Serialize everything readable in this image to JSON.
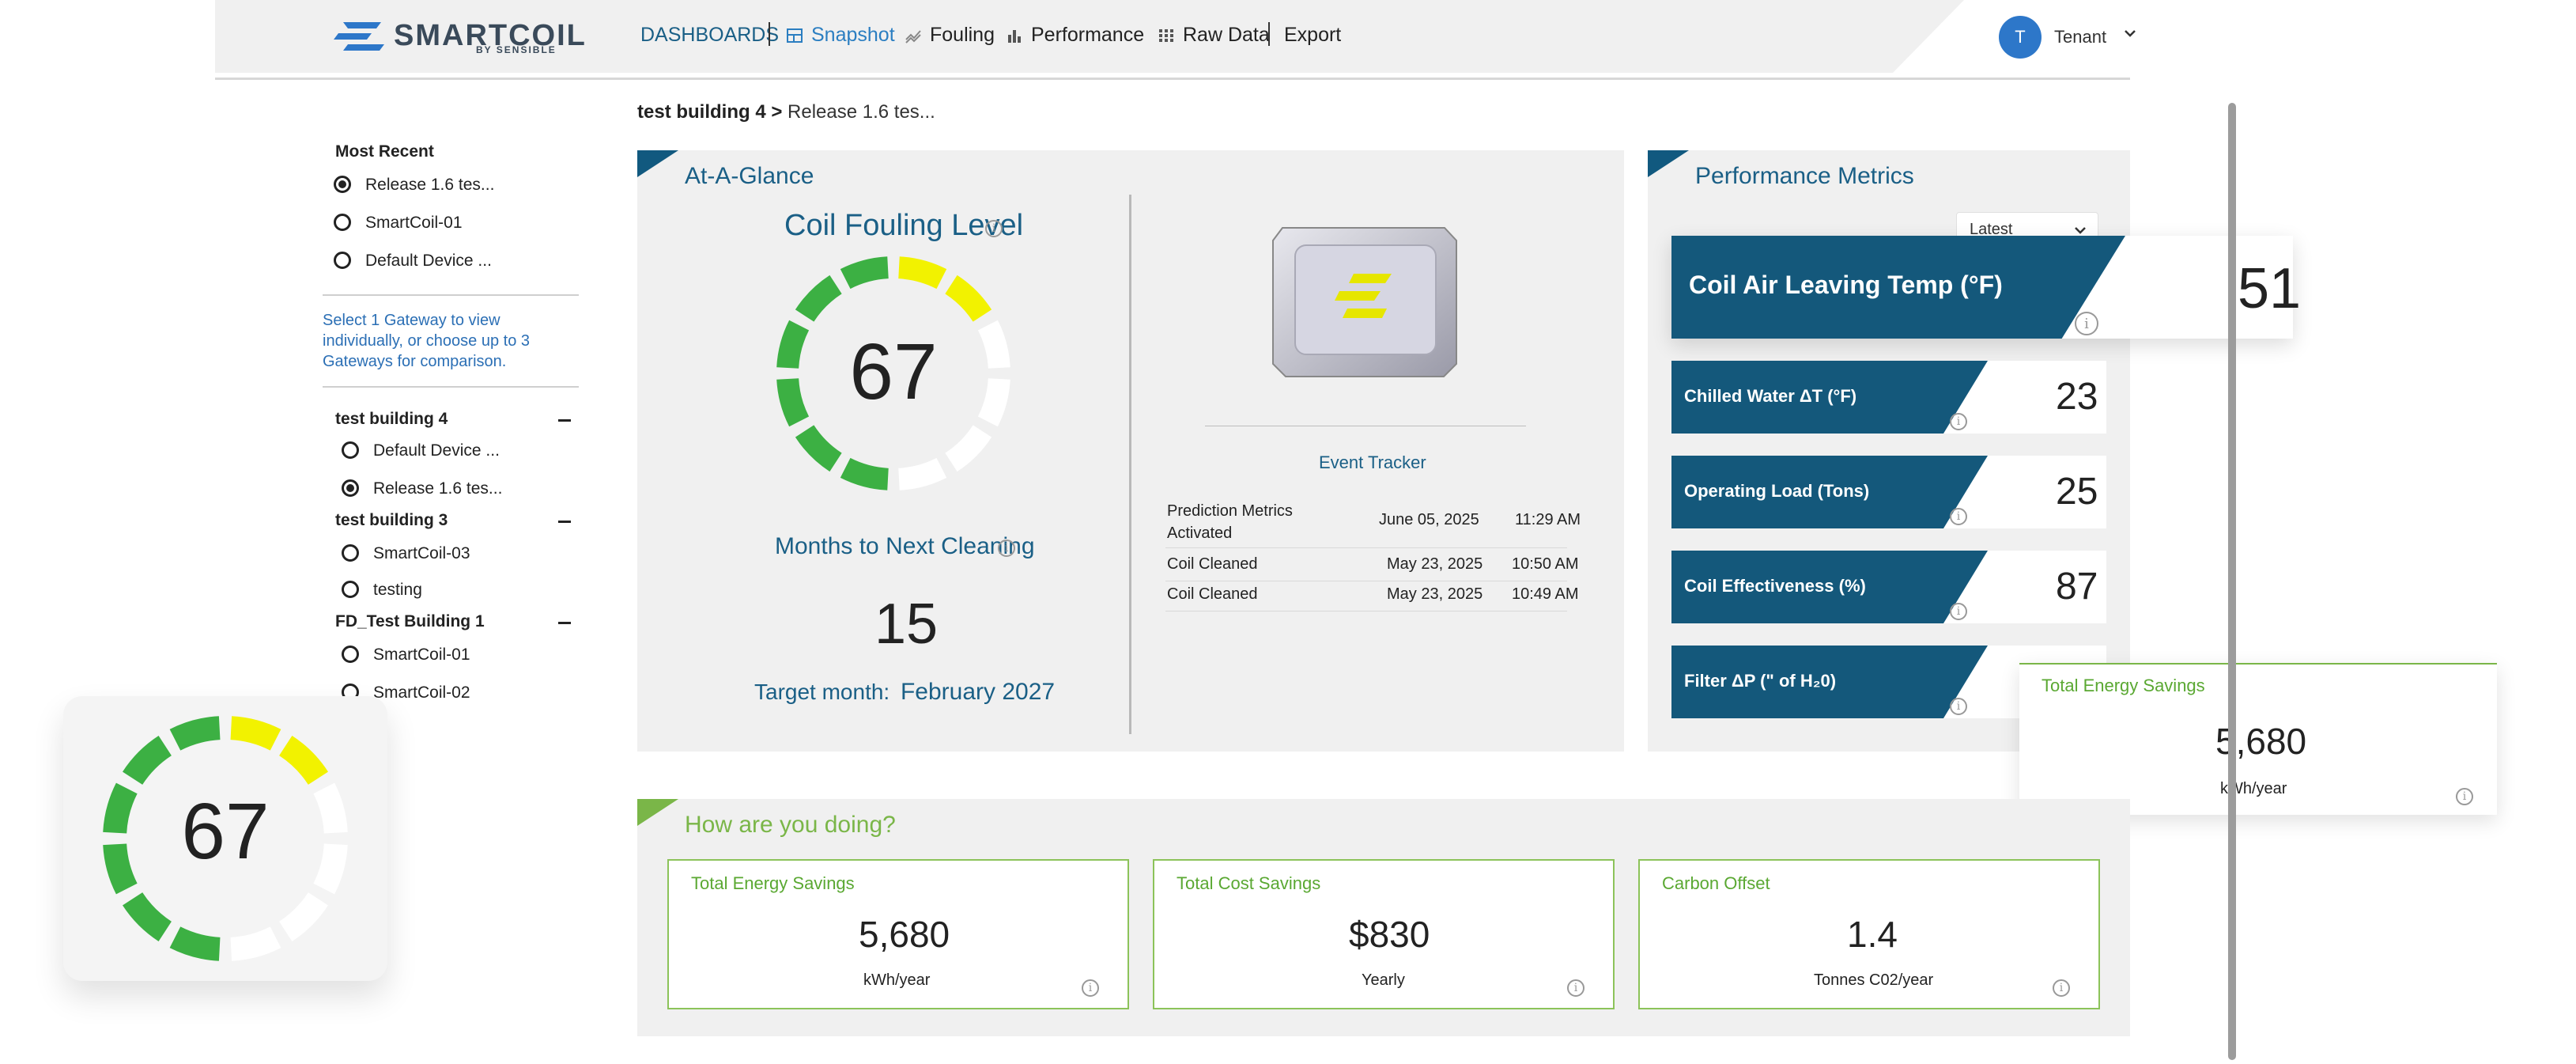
{
  "colors": {
    "brand_blue": "#14587b",
    "link_blue": "#2b7ec1",
    "green": "#7ab648",
    "gauge_green": "#3cb043",
    "gauge_yellow": "#f2f200",
    "avatar": "#2d77c9"
  },
  "header": {
    "logo_text": "SMARTCOIL",
    "logo_sub": "BY SENSIBLE",
    "nav": {
      "dashboards": "DASHBOARDS",
      "snapshot": "Snapshot",
      "fouling": "Fouling",
      "performance": "Performance",
      "raw_data": "Raw Data",
      "export": "Export"
    },
    "user_initial": "T",
    "user_label": "Tenant"
  },
  "sidebar": {
    "most_recent_title": "Most Recent",
    "most_recent": [
      {
        "label": "Release 1.6 tes...",
        "selected": true
      },
      {
        "label": "SmartCoil-01",
        "selected": false
      },
      {
        "label": "Default Device ...",
        "selected": false
      }
    ],
    "help_text": "Select 1 Gateway to view individually, or choose up to 3 Gateways for comparison.",
    "buildings": [
      {
        "name": "test building 4",
        "devices": [
          {
            "label": "Default Device ...",
            "selected": false
          },
          {
            "label": "Release 1.6 tes...",
            "selected": true
          }
        ]
      },
      {
        "name": "test building 3",
        "devices": [
          {
            "label": "SmartCoil-03",
            "selected": false
          },
          {
            "label": "testing",
            "selected": false
          }
        ]
      },
      {
        "name": "FD_Test Building 1",
        "devices": [
          {
            "label": "SmartCoil-01",
            "selected": false
          },
          {
            "label": "SmartCoil-02",
            "selected": false
          }
        ]
      }
    ]
  },
  "breadcrumb": {
    "building": "test building 4",
    "sep": ">",
    "device": "Release 1.6 tes..."
  },
  "glance": {
    "title": "At-A-Glance",
    "fouling_title": "Coil Fouling Level",
    "fouling_value": "67",
    "fouling_percent": 67,
    "months_title": "Months to Next Cleaning",
    "months_value": "15",
    "target_label": "Target month:",
    "target_value": "February 2027",
    "event_tracker_title": "Event Tracker",
    "events": [
      {
        "event": "Prediction Metrics Activated",
        "date": "June 05, 2025",
        "time": "11:29 AM"
      },
      {
        "event": "Coil Cleaned",
        "date": "May 23, 2025",
        "time": "10:50 AM"
      },
      {
        "event": "Coil Cleaned",
        "date": "May 23, 2025",
        "time": "10:49 AM"
      }
    ]
  },
  "performance": {
    "title": "Performance Metrics",
    "dropdown_value": "Latest",
    "metrics": [
      {
        "label": "Coil Air Leaving Temp (°F)",
        "value": "51"
      },
      {
        "label": "Chilled Water ΔT (°F)",
        "value": "23"
      },
      {
        "label": "Operating Load (Tons)",
        "value": "25"
      },
      {
        "label": "Coil Effectiveness (%)",
        "value": "87"
      },
      {
        "label": "Filter ΔP (\" of H₂0)",
        "value": ""
      }
    ]
  },
  "floating_energy": {
    "title": "Total Energy Savings",
    "value": "5,680",
    "unit": "kWh/year"
  },
  "floating_gauge": {
    "value": "67"
  },
  "how": {
    "title": "How are you doing?",
    "cards": [
      {
        "title": "Total Energy Savings",
        "value": "5,680",
        "unit": "kWh/year"
      },
      {
        "title": "Total Cost Savings",
        "value": "$830",
        "unit": "Yearly"
      },
      {
        "title": "Carbon Offset",
        "value": "1.4",
        "unit": "Tonnes C02/year"
      }
    ]
  }
}
